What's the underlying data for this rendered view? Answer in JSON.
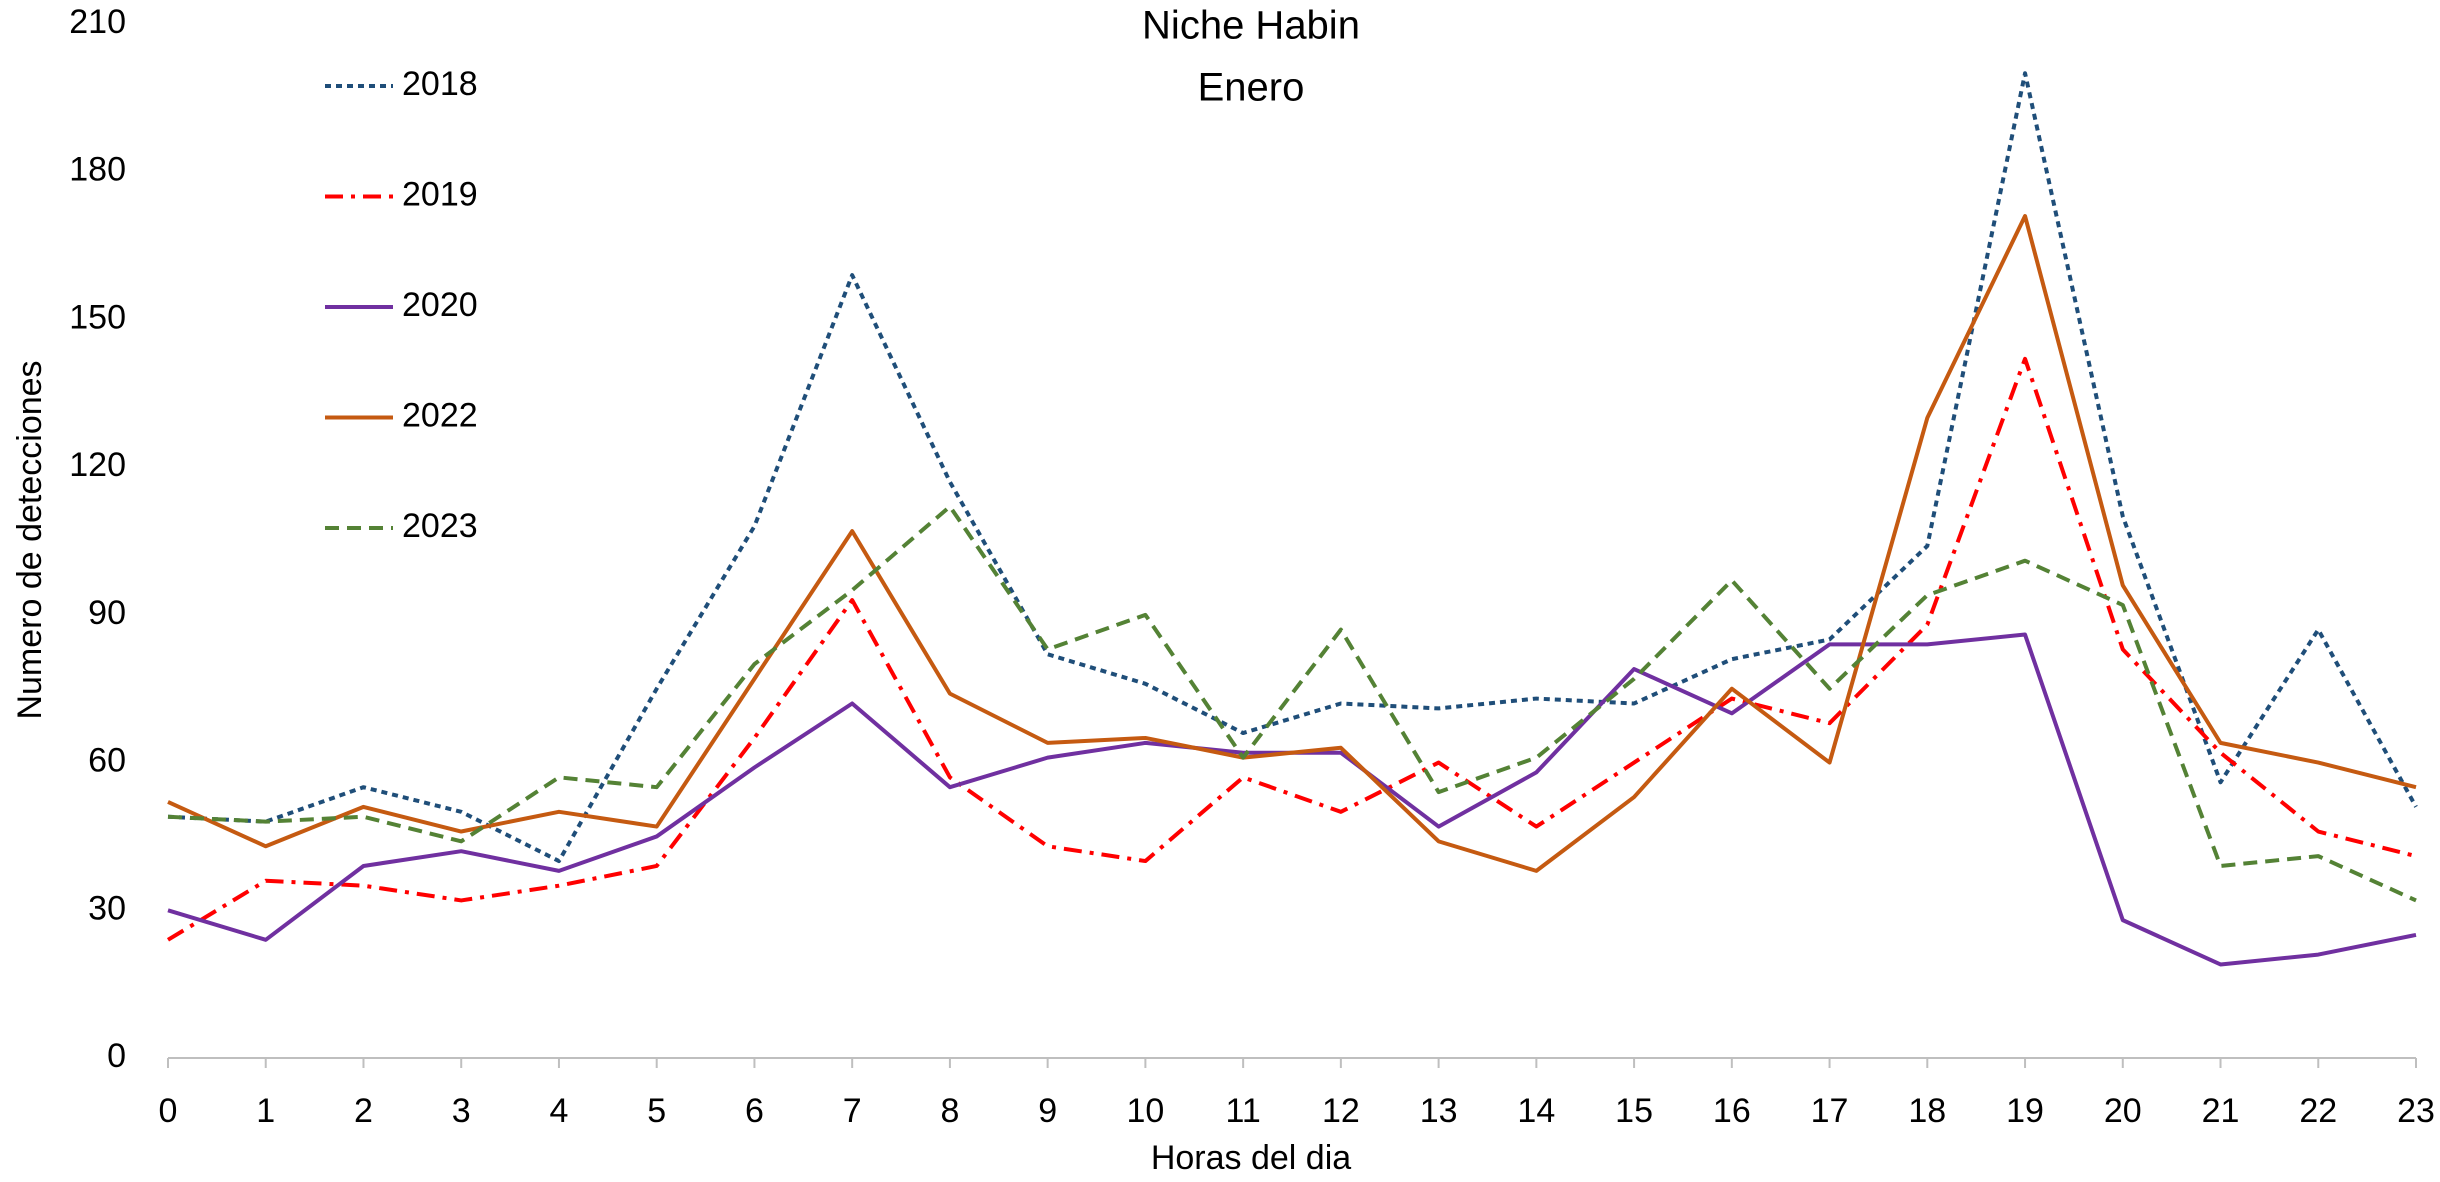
{
  "chart_data": {
    "type": "line",
    "title": "Niche Habin",
    "subtitle": "Enero",
    "xlabel": "Horas del dia",
    "ylabel": "Numero de detecciones",
    "x": [
      0,
      1,
      2,
      3,
      4,
      5,
      6,
      7,
      8,
      9,
      10,
      11,
      12,
      13,
      14,
      15,
      16,
      17,
      18,
      19,
      20,
      21,
      22,
      23
    ],
    "xlim": [
      0,
      23
    ],
    "xticks": [
      0,
      1,
      2,
      3,
      4,
      5,
      6,
      7,
      8,
      9,
      10,
      11,
      12,
      13,
      14,
      15,
      16,
      17,
      18,
      19,
      20,
      21,
      22,
      23
    ],
    "ylim": [
      0,
      210
    ],
    "yticks": [
      0,
      30,
      60,
      90,
      120,
      150,
      180,
      210
    ],
    "grid": false,
    "legend": "upper left",
    "series": [
      {
        "name": "2018",
        "color": "#1f4e79",
        "dash": "dotted",
        "values": [
          49,
          48,
          55,
          50,
          40,
          75,
          108,
          159,
          117,
          82,
          76,
          66,
          72,
          71,
          73,
          72,
          81,
          85,
          104,
          200,
          110,
          56,
          87,
          51
        ]
      },
      {
        "name": "2019",
        "color": "#ff0000",
        "dash": "dashdot",
        "values": [
          24,
          36,
          35,
          32,
          35,
          39,
          65,
          93,
          57,
          43,
          40,
          57,
          50,
          60,
          47,
          60,
          73,
          68,
          88,
          142,
          83,
          62,
          46,
          41
        ]
      },
      {
        "name": "2020",
        "color": "#7030a0",
        "dash": "solid",
        "values": [
          30,
          24,
          39,
          42,
          38,
          45,
          59,
          72,
          55,
          61,
          64,
          62,
          62,
          47,
          58,
          79,
          70,
          84,
          84,
          86,
          28,
          19,
          21,
          25
        ]
      },
      {
        "name": "2022",
        "color": "#c55a11",
        "dash": "solid",
        "values": [
          52,
          43,
          51,
          46,
          50,
          47,
          77,
          107,
          74,
          64,
          65,
          61,
          63,
          44,
          38,
          53,
          75,
          60,
          130,
          171,
          96,
          64,
          60,
          55
        ]
      },
      {
        "name": "2023",
        "color": "#548235",
        "dash": "dashed",
        "values": [
          49,
          48,
          49,
          44,
          57,
          55,
          80,
          95,
          112,
          83,
          90,
          61,
          87,
          54,
          61,
          77,
          97,
          75,
          94,
          101,
          92,
          39,
          41,
          32
        ]
      }
    ]
  }
}
